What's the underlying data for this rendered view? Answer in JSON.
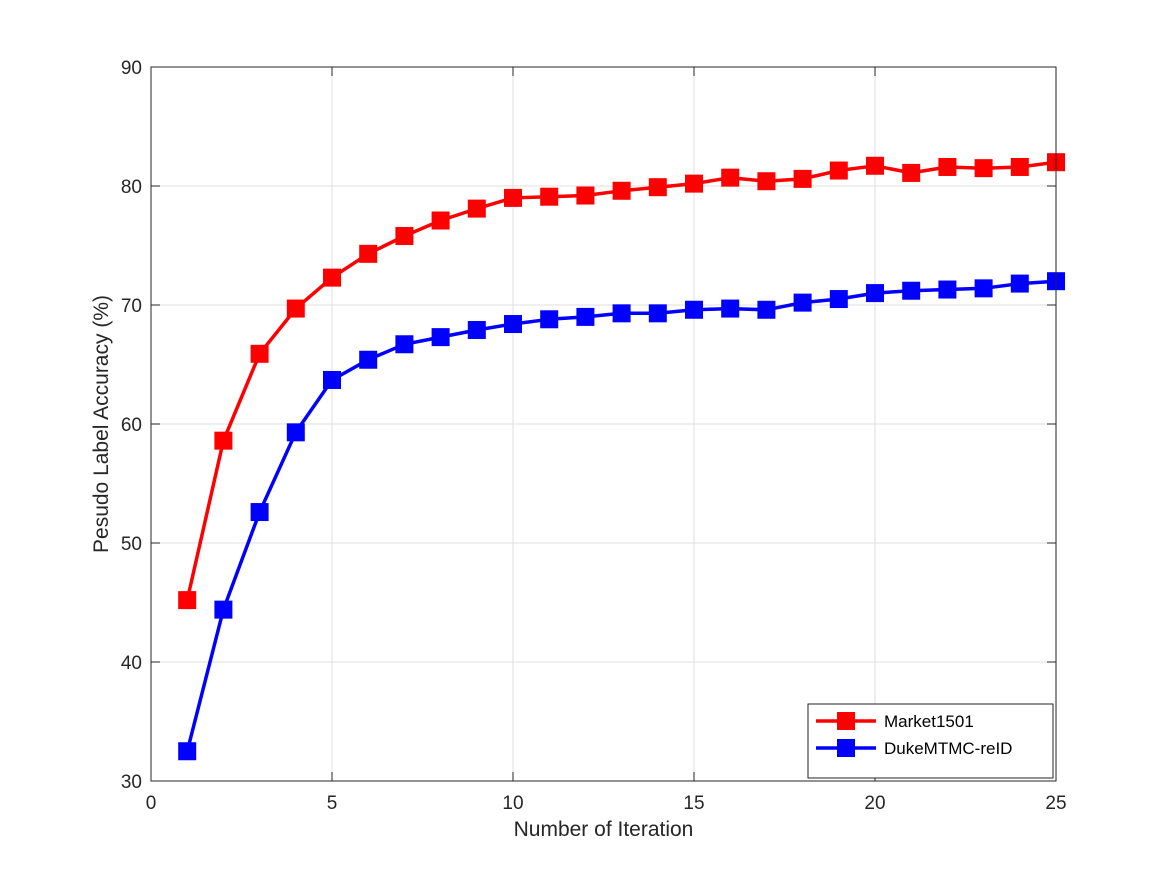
{
  "chart_data": {
    "type": "line",
    "title": "",
    "xlabel": "Number of Iteration",
    "ylabel": "Pesudo Label Accuracy (%)",
    "xlim": [
      0,
      25
    ],
    "ylim": [
      30,
      90
    ],
    "xticks": [
      0,
      5,
      10,
      15,
      20,
      25
    ],
    "yticks": [
      30,
      40,
      50,
      60,
      70,
      80,
      90
    ],
    "grid": true,
    "legend_position": "bottom-right",
    "x": [
      1,
      2,
      3,
      4,
      5,
      6,
      7,
      8,
      9,
      10,
      11,
      12,
      13,
      14,
      15,
      16,
      17,
      18,
      19,
      20,
      21,
      22,
      23,
      24,
      25
    ],
    "series": [
      {
        "name": "Market1501",
        "color": "#ff0000",
        "marker": "square",
        "values": [
          45.2,
          58.6,
          65.9,
          69.7,
          72.3,
          74.3,
          75.8,
          77.1,
          78.1,
          79.0,
          79.1,
          79.2,
          79.6,
          79.9,
          80.2,
          80.7,
          80.4,
          80.6,
          81.3,
          81.7,
          81.1,
          81.6,
          81.5,
          81.6,
          82.0
        ]
      },
      {
        "name": "DukeMTMC-reID",
        "color": "#0000ff",
        "marker": "square",
        "values": [
          32.5,
          44.4,
          52.6,
          59.3,
          63.7,
          65.4,
          66.7,
          67.3,
          67.9,
          68.4,
          68.8,
          69.0,
          69.3,
          69.3,
          69.6,
          69.7,
          69.6,
          70.2,
          70.5,
          71.0,
          71.2,
          71.3,
          71.4,
          71.8,
          72.0
        ]
      }
    ]
  }
}
